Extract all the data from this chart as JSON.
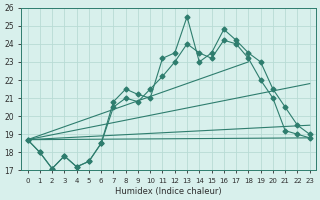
{
  "xlabel": "Humidex (Indice chaleur)",
  "ylabel": "",
  "x": [
    0,
    1,
    2,
    3,
    4,
    5,
    6,
    7,
    8,
    9,
    10,
    11,
    12,
    13,
    14,
    15,
    16,
    17,
    18,
    19,
    20,
    21,
    22,
    23
  ],
  "jagged_series": [
    18.7,
    18.0,
    17.1,
    17.8,
    17.2,
    17.5,
    18.5,
    20.5,
    21.0,
    20.8,
    21.5,
    22.2,
    23.0,
    24.0,
    23.5,
    23.2,
    24.2,
    24.0,
    23.2,
    22.0,
    21.0,
    19.2,
    19.0,
    18.8
  ],
  "jagged_series2": [
    18.7,
    18.0,
    17.1,
    17.8,
    17.2,
    17.5,
    18.5,
    20.8,
    21.5,
    21.2,
    21.0,
    23.2,
    23.5,
    25.5,
    23.0,
    23.5,
    24.8,
    24.2,
    23.5,
    23.0,
    21.5,
    20.5,
    19.5,
    19.0
  ],
  "straight_lines": [
    {
      "x0": 0,
      "y0": 18.7,
      "x1": 23,
      "y1": 21.8
    },
    {
      "x0": 0,
      "y0": 18.7,
      "x1": 23,
      "y1": 19.5
    },
    {
      "x0": 0,
      "y0": 18.7,
      "x1": 23,
      "y1": 18.8
    },
    {
      "x0": 0,
      "y0": 18.7,
      "x1": 18,
      "y1": 23.0
    }
  ],
  "line_color": "#2e7d6e",
  "marker": "D",
  "marker_size": 2.5,
  "bg_color": "#d8f0ec",
  "grid_color": "#b8dbd5",
  "ylim": [
    17,
    26
  ],
  "xlim": [
    -0.5,
    23.5
  ],
  "yticks": [
    17,
    18,
    19,
    20,
    21,
    22,
    23,
    24,
    25,
    26
  ],
  "xticks": [
    0,
    1,
    2,
    3,
    4,
    5,
    6,
    7,
    8,
    9,
    10,
    11,
    12,
    13,
    14,
    15,
    16,
    17,
    18,
    19,
    20,
    21,
    22,
    23
  ]
}
